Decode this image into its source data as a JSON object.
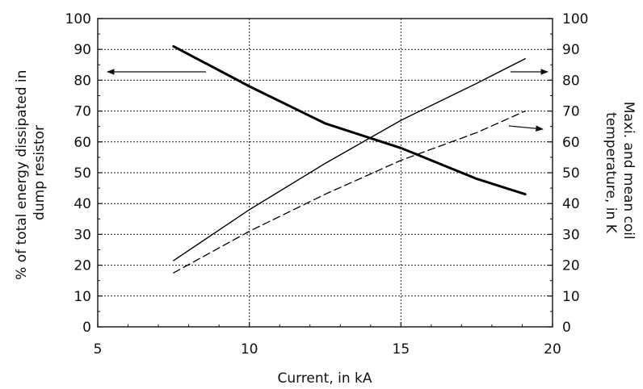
{
  "chart_data": {
    "type": "line",
    "title": "",
    "xlabel": "Current, in kA",
    "ylabel_left": "% of total energy dissipated in dump resistor",
    "ylabel_right": "Maxi. and mean coil temperature, in K",
    "xlim": [
      5,
      20
    ],
    "ylim": [
      0,
      100
    ],
    "ylim_right": [
      0,
      100
    ],
    "x_ticks": [
      "5",
      "10",
      "15",
      "20"
    ],
    "y_ticks": [
      "0",
      "10",
      "20",
      "30",
      "40",
      "50",
      "60",
      "70",
      "80",
      "90",
      "100"
    ],
    "grid": true,
    "series": [
      {
        "axis": "left",
        "style": "solid-thick",
        "color": "#000000",
        "x": [
          7.5,
          10,
          12.5,
          15,
          17.5,
          19.1
        ],
        "y": [
          91,
          78,
          66,
          58,
          48,
          43
        ]
      },
      {
        "axis": "right",
        "style": "solid-thin",
        "color": "#000000",
        "x": [
          7.5,
          10,
          12.5,
          15,
          17.5,
          19.1
        ],
        "y": [
          21.5,
          38,
          53,
          67,
          79,
          87
        ]
      },
      {
        "axis": "right",
        "style": "dashed",
        "color": "#000000",
        "x": [
          7.5,
          10,
          12.5,
          15,
          17.5,
          19.1
        ],
        "y": [
          17.5,
          31,
          43,
          54,
          63,
          70
        ]
      }
    ],
    "annotations": [
      {
        "type": "arrow",
        "direction": "left",
        "target": "left-axis"
      },
      {
        "type": "arrow",
        "direction": "right",
        "target": "right-axis"
      },
      {
        "type": "arrow",
        "direction": "right",
        "target": "right-axis"
      }
    ]
  }
}
